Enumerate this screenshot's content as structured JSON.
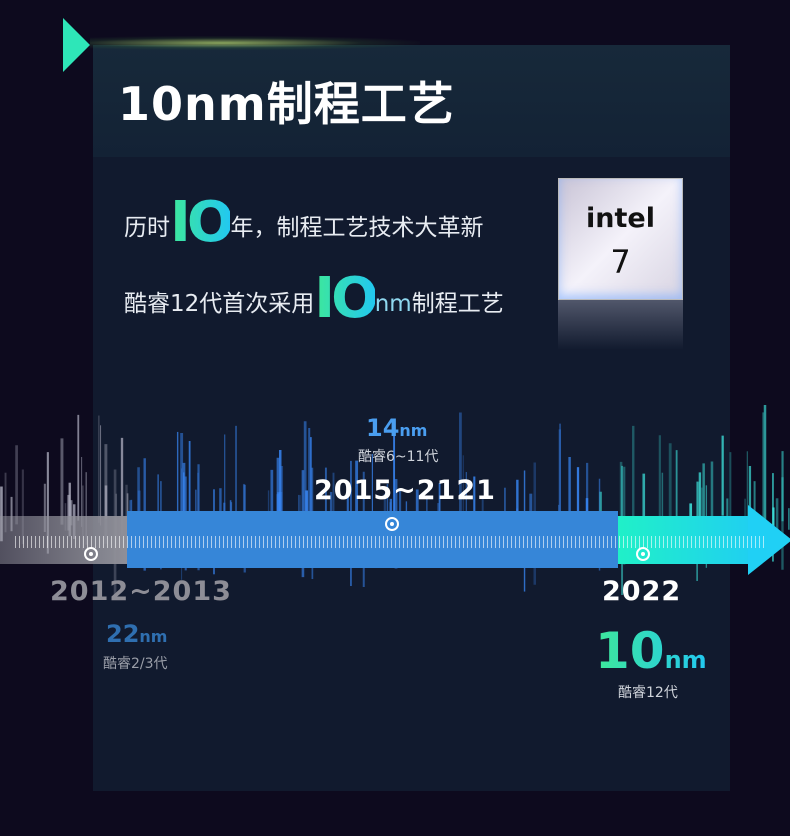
{
  "title": "10nm制程工艺",
  "headline": {
    "line1_pre": "历时",
    "line1_big": "IO",
    "line1_post": "年，制程工艺技术大革新",
    "line2_pre": "酷睿12代首次采用",
    "line2_big": "IO",
    "line2_unit": "nm",
    "line2_post": "制程工艺"
  },
  "chip": {
    "brand": "intel",
    "model": "7"
  },
  "timeline": [
    {
      "years": "2012~2013",
      "node": "22",
      "unit": "nm",
      "gen": "酷睿2/3代",
      "color": "#2f6fb0"
    },
    {
      "years": "2015~2121",
      "node": "14",
      "unit": "nm",
      "gen": "酷睿6~11代",
      "color": "#4a9ef0"
    },
    {
      "years": "2022",
      "node": "10",
      "unit": "nm",
      "gen": "酷睿12代",
      "color": "#2ee8a0"
    }
  ],
  "colors": {
    "background": "#0d0a1e",
    "panel": "#111a2e",
    "bar_blue": "#3686d8",
    "bar_green": "#20f0c8",
    "accent": "#2ee6b8"
  }
}
